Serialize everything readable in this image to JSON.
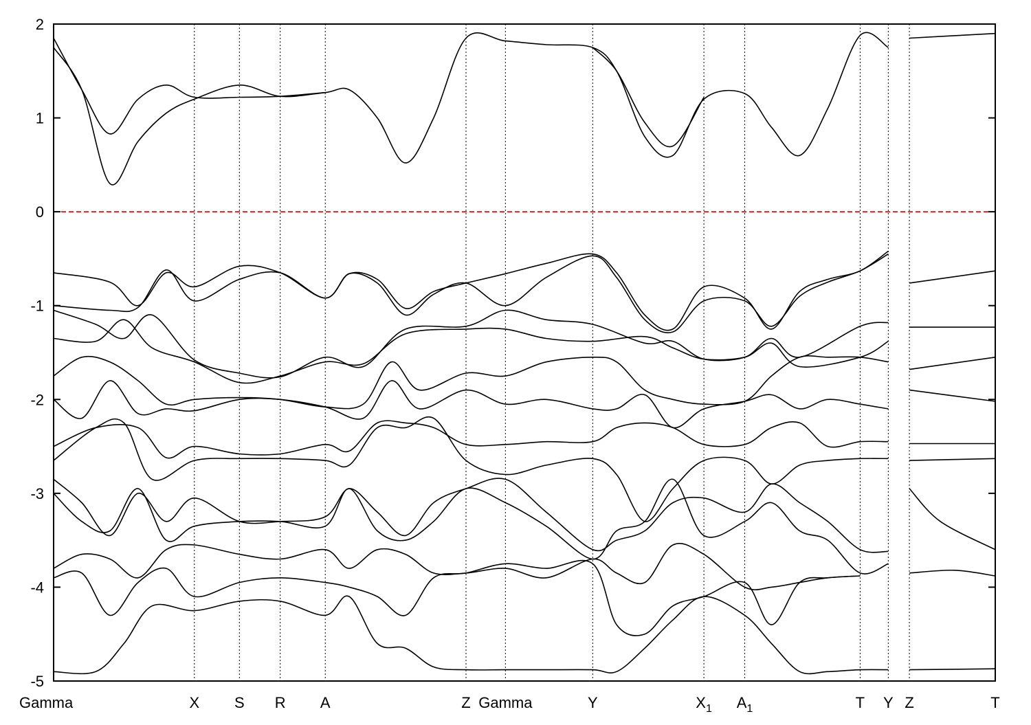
{
  "chart_data": {
    "type": "line",
    "title": "",
    "xlabel": "",
    "ylabel": "",
    "ylim": [
      -5,
      2
    ],
    "y_ticks": [
      "2",
      "1",
      "0",
      "-1",
      "-2",
      "-3",
      "-4",
      "-5"
    ],
    "grid": "vertical dotted lines at high-symmetry points",
    "legend": "none",
    "colors": {
      "band": "#000000",
      "fermi_level": "#dd0000",
      "axis": "#000000"
    },
    "x_ticks": [
      {
        "label": "Gamma",
        "sub": "",
        "pos": 0.0
      },
      {
        "label": "X",
        "sub": "",
        "pos": 1.0
      },
      {
        "label": "S",
        "sub": "",
        "pos": 1.32
      },
      {
        "label": "R",
        "sub": "",
        "pos": 1.61
      },
      {
        "label": "A",
        "sub": "",
        "pos": 1.93
      },
      {
        "label": "Z",
        "sub": "",
        "pos": 2.93
      },
      {
        "label": "Gamma",
        "sub": "",
        "pos": 3.21
      },
      {
        "label": "Y",
        "sub": "",
        "pos": 3.83
      },
      {
        "label": "X",
        "sub": "1",
        "pos": 4.62
      },
      {
        "label": "A",
        "sub": "1",
        "pos": 4.91
      },
      {
        "label": "T",
        "sub": "",
        "pos": 5.73
      },
      {
        "label": "Y",
        "sub": "",
        "pos": 5.93
      },
      {
        "label": "Z",
        "sub": "",
        "pos": 6.08
      },
      {
        "label": "T",
        "sub": "",
        "pos": 6.69
      }
    ],
    "xlim": [
      0,
      6.69
    ],
    "fermi_level": 0,
    "series": [
      {
        "x": [
          0,
          0.2,
          0.4,
          0.6,
          0.8,
          1.0,
          1.32,
          1.61,
          1.93,
          2.1,
          2.3,
          2.5,
          2.7,
          2.93,
          3.21,
          3.5,
          3.83,
          4.0,
          4.2,
          4.4,
          4.62,
          4.91,
          5.1,
          5.3,
          5.5,
          5.73,
          5.93
        ],
        "y": [
          1.75,
          1.3,
          0.3,
          0.75,
          1.05,
          1.2,
          1.35,
          1.23,
          1.27,
          1.3,
          1.0,
          0.52,
          1.0,
          1.85,
          1.82,
          1.78,
          1.75,
          1.5,
          0.8,
          0.6,
          1.2,
          1.26,
          0.9,
          0.6,
          1.1,
          1.88,
          1.75
        ]
      },
      {
        "x": [
          0,
          0.2,
          0.4,
          0.6,
          0.8,
          1.0,
          1.32,
          1.61,
          1.93
        ],
        "y": [
          1.85,
          1.3,
          0.83,
          1.2,
          1.35,
          1.22,
          1.22,
          1.23,
          1.27
        ]
      },
      {
        "x": [
          3.83,
          4.0,
          4.2,
          4.4,
          4.62
        ],
        "y": [
          1.75,
          1.5,
          0.95,
          0.7,
          1.22
        ]
      },
      {
        "x": [
          6.08,
          6.69
        ],
        "y": [
          1.85,
          1.9
        ]
      },
      {
        "x": [
          0,
          0.4,
          0.6,
          0.8,
          1.0,
          1.32,
          1.61,
          1.93,
          2.1,
          2.3,
          2.5,
          2.7,
          2.93,
          3.21,
          3.5,
          3.83,
          4.0,
          4.2,
          4.4,
          4.62,
          4.91,
          5.1,
          5.3,
          5.5,
          5.73,
          5.93
        ],
        "y": [
          -0.65,
          -0.75,
          -1.0,
          -0.65,
          -0.8,
          -0.58,
          -0.65,
          -0.92,
          -0.66,
          -0.72,
          -1.03,
          -0.85,
          -0.76,
          -0.66,
          -0.55,
          -0.45,
          -0.65,
          -1.1,
          -1.25,
          -0.8,
          -0.92,
          -1.25,
          -0.85,
          -0.72,
          -0.63,
          -0.42
        ]
      },
      {
        "x": [
          0,
          0.4,
          0.6,
          0.8,
          1.0,
          1.32,
          1.61,
          1.93,
          2.1,
          2.3,
          2.5,
          2.7,
          2.93,
          3.21,
          3.5,
          3.83,
          4.0,
          4.2,
          4.4,
          4.62,
          4.91,
          5.1,
          5.3,
          5.5,
          5.73,
          5.93
        ],
        "y": [
          -1.0,
          -1.05,
          -1.02,
          -0.62,
          -0.95,
          -0.72,
          -0.65,
          -0.92,
          -0.66,
          -0.76,
          -1.1,
          -0.88,
          -0.76,
          -1.0,
          -0.7,
          -0.47,
          -0.7,
          -1.15,
          -1.28,
          -0.95,
          -0.95,
          -1.22,
          -0.9,
          -0.75,
          -0.63,
          -0.45
        ]
      },
      {
        "x": [
          6.08,
          6.69
        ],
        "y": [
          -0.76,
          -0.63
        ]
      },
      {
        "x": [
          0,
          0.3,
          0.5,
          0.7,
          1.0,
          1.32,
          1.61,
          1.93,
          2.2,
          2.5,
          2.93,
          3.21,
          3.5,
          3.83,
          4.2,
          4.4,
          4.62,
          4.91,
          5.1,
          5.3,
          5.73,
          5.93
        ],
        "y": [
          -1.05,
          -1.2,
          -1.35,
          -1.1,
          -1.58,
          -1.72,
          -1.76,
          -1.55,
          -1.65,
          -1.25,
          -1.22,
          -1.05,
          -1.15,
          -1.2,
          -1.4,
          -1.38,
          -1.57,
          -1.55,
          -1.35,
          -1.55,
          -1.22,
          -1.18
        ]
      },
      {
        "x": [
          0,
          0.3,
          0.5,
          0.7,
          1.0,
          1.32,
          1.61,
          1.93,
          2.2,
          2.5,
          2.93,
          3.21,
          3.5,
          3.83,
          4.2,
          4.4,
          4.62,
          4.91,
          5.1,
          5.3,
          5.73,
          5.93
        ],
        "y": [
          -1.35,
          -1.38,
          -1.15,
          -1.45,
          -1.6,
          -1.82,
          -1.75,
          -1.6,
          -1.62,
          -1.3,
          -1.25,
          -1.25,
          -1.35,
          -1.38,
          -1.33,
          -1.45,
          -1.57,
          -1.55,
          -1.4,
          -1.65,
          -1.55,
          -1.38
        ]
      },
      {
        "x": [
          6.08,
          6.69
        ],
        "y": [
          -1.23,
          -1.23
        ]
      },
      {
        "x": [
          6.08,
          6.69
        ],
        "y": [
          -1.68,
          -1.55
        ]
      },
      {
        "x": [
          0,
          0.2,
          0.4,
          0.6,
          0.8,
          1.0,
          1.32,
          1.61,
          1.93,
          2.2,
          2.4,
          2.6,
          2.93,
          3.21,
          3.5,
          3.83,
          4.0,
          4.2,
          4.4,
          4.62,
          4.91,
          5.1,
          5.3,
          5.5,
          5.73,
          5.93
        ],
        "y": [
          -1.75,
          -1.55,
          -1.6,
          -1.8,
          -2.05,
          -2.0,
          -1.98,
          -2.0,
          -2.08,
          -2.05,
          -1.6,
          -1.9,
          -1.72,
          -1.75,
          -1.6,
          -1.55,
          -1.6,
          -1.9,
          -2.0,
          -2.05,
          -2.02,
          -1.75,
          -1.55,
          -1.55,
          -1.55,
          -1.6
        ]
      },
      {
        "x": [
          0,
          0.2,
          0.4,
          0.6,
          0.8,
          1.0,
          1.32,
          1.61,
          1.93,
          2.2,
          2.4,
          2.6,
          2.93,
          3.21,
          3.5,
          3.83,
          4.0,
          4.2,
          4.4,
          4.62,
          4.91,
          5.1,
          5.3,
          5.5,
          5.73,
          5.93
        ],
        "y": [
          -2.0,
          -2.2,
          -1.8,
          -2.15,
          -2.1,
          -2.12,
          -2.0,
          -2.0,
          -2.08,
          -2.2,
          -1.8,
          -2.1,
          -1.9,
          -2.05,
          -2.0,
          -2.1,
          -2.1,
          -1.95,
          -2.3,
          -2.1,
          -2.02,
          -1.95,
          -2.1,
          -2.0,
          -2.05,
          -2.1
        ]
      },
      {
        "x": [
          6.08,
          6.69
        ],
        "y": [
          -1.9,
          -2.02
        ]
      },
      {
        "x": [
          0,
          0.3,
          0.6,
          0.8,
          1.0,
          1.32,
          1.61,
          1.93,
          2.1,
          2.3,
          2.5,
          2.7,
          2.93,
          3.21,
          3.5,
          3.83,
          4.0,
          4.2,
          4.4,
          4.62,
          4.91,
          5.1,
          5.3,
          5.5,
          5.73,
          5.93
        ],
        "y": [
          -2.5,
          -2.3,
          -2.3,
          -2.62,
          -2.5,
          -2.58,
          -2.58,
          -2.48,
          -2.55,
          -2.25,
          -2.25,
          -2.3,
          -2.48,
          -2.48,
          -2.45,
          -2.45,
          -2.3,
          -2.25,
          -2.3,
          -2.48,
          -2.48,
          -2.3,
          -2.25,
          -2.5,
          -2.45,
          -2.45
        ]
      },
      {
        "x": [
          6.08,
          6.69
        ],
        "y": [
          -2.47,
          -2.47
        ]
      },
      {
        "x": [
          0,
          0.3,
          0.5,
          0.7,
          1.0,
          1.32,
          1.61,
          1.93,
          2.1,
          2.3,
          2.5,
          2.7,
          2.93,
          3.21,
          3.5,
          3.83,
          4.0,
          4.2,
          4.4,
          4.62,
          4.91,
          5.1,
          5.3,
          5.5,
          5.73,
          5.93
        ],
        "y": [
          -2.65,
          -2.3,
          -2.25,
          -2.85,
          -2.65,
          -2.63,
          -2.63,
          -2.65,
          -2.7,
          -2.3,
          -2.3,
          -2.2,
          -2.65,
          -2.8,
          -2.7,
          -2.63,
          -2.8,
          -3.3,
          -2.95,
          -2.65,
          -2.65,
          -2.9,
          -2.7,
          -2.65,
          -2.63,
          -2.63
        ]
      },
      {
        "x": [
          6.08,
          6.69
        ],
        "y": [
          -2.65,
          -2.63
        ]
      },
      {
        "x": [
          0,
          0.2,
          0.4,
          0.6,
          0.8,
          1.0,
          1.32,
          1.61,
          1.93,
          2.1,
          2.3,
          2.5,
          2.7,
          2.93,
          3.21,
          3.5,
          3.83,
          4.0,
          4.2,
          4.4,
          4.62,
          4.91,
          5.1,
          5.3,
          5.5,
          5.73,
          5.93
        ],
        "y": [
          -2.85,
          -3.1,
          -3.45,
          -3.0,
          -3.3,
          -3.05,
          -3.3,
          -3.3,
          -3.25,
          -2.95,
          -3.2,
          -3.45,
          -3.1,
          -2.95,
          -2.85,
          -3.2,
          -3.6,
          -3.5,
          -3.4,
          -3.1,
          -3.05,
          -3.2,
          -2.9,
          -3.1,
          -3.3,
          -3.6,
          -3.62
        ]
      },
      {
        "x": [
          6.08,
          6.3,
          6.69
        ],
        "y": [
          -2.95,
          -3.3,
          -3.6
        ]
      },
      {
        "x": [
          0,
          0.2,
          0.4,
          0.6,
          0.8,
          1.0,
          1.32,
          1.61,
          1.93,
          2.1,
          2.3,
          2.5,
          2.7,
          2.93,
          3.21,
          3.5,
          3.83,
          4.0,
          4.2,
          4.4,
          4.62,
          4.91,
          5.1,
          5.3,
          5.5,
          5.73,
          5.93
        ],
        "y": [
          -3.0,
          -3.3,
          -3.4,
          -2.95,
          -3.5,
          -3.35,
          -3.3,
          -3.3,
          -3.35,
          -2.95,
          -3.4,
          -3.5,
          -3.3,
          -2.95,
          -3.1,
          -3.35,
          -3.7,
          -3.4,
          -3.3,
          -2.85,
          -3.45,
          -3.3,
          -3.1,
          -3.4,
          -3.5,
          -3.85,
          -3.75
        ]
      },
      {
        "x": [
          6.08,
          6.4,
          6.69
        ],
        "y": [
          -3.85,
          -3.82,
          -3.88
        ]
      },
      {
        "x": [
          0,
          0.2,
          0.4,
          0.6,
          0.8,
          1.0,
          1.32,
          1.61,
          1.93,
          2.1,
          2.3,
          2.5,
          2.7,
          2.93,
          3.21,
          3.5,
          3.83,
          4.0,
          4.2,
          4.4,
          4.62,
          4.91,
          5.1,
          5.3,
          5.5,
          5.73
        ],
        "y": [
          -3.8,
          -3.65,
          -3.7,
          -3.9,
          -3.6,
          -3.55,
          -3.65,
          -3.7,
          -3.6,
          -3.8,
          -3.6,
          -3.65,
          -3.85,
          -3.85,
          -3.8,
          -3.9,
          -3.7,
          -3.85,
          -3.95,
          -3.55,
          -3.65,
          -4.0,
          -4.0,
          -3.95,
          -3.9,
          -3.88
        ]
      },
      {
        "x": [
          0,
          0.2,
          0.4,
          0.6,
          0.8,
          1.0,
          1.32,
          1.61,
          1.93,
          2.1,
          2.3,
          2.5,
          2.7,
          2.93,
          3.21,
          3.5,
          3.83,
          4.0,
          4.2,
          4.4,
          4.62,
          4.91,
          5.1,
          5.3,
          5.5,
          5.73
        ],
        "y": [
          -3.9,
          -3.85,
          -4.3,
          -3.95,
          -3.8,
          -4.1,
          -3.95,
          -3.9,
          -3.95,
          -4.0,
          -4.1,
          -4.3,
          -3.9,
          -3.85,
          -3.75,
          -3.8,
          -3.75,
          -4.4,
          -4.5,
          -4.2,
          -4.1,
          -3.95,
          -4.4,
          -3.95,
          -3.9,
          -3.88
        ]
      },
      {
        "x": [
          0,
          0.3,
          0.5,
          0.7,
          1.0,
          1.32,
          1.61,
          1.93,
          2.1,
          2.3,
          2.5,
          2.7,
          2.93,
          3.21,
          3.5,
          3.83,
          4.0,
          4.2,
          4.4,
          4.62,
          4.91,
          5.1,
          5.3,
          5.5,
          5.73,
          5.93
        ],
        "y": [
          -4.9,
          -4.9,
          -4.6,
          -4.2,
          -4.25,
          -4.15,
          -4.15,
          -4.3,
          -4.1,
          -4.6,
          -4.65,
          -4.85,
          -4.88,
          -4.88,
          -4.88,
          -4.88,
          -4.9,
          -4.65,
          -4.35,
          -4.1,
          -4.3,
          -4.6,
          -4.9,
          -4.9,
          -4.88,
          -4.88
        ]
      },
      {
        "x": [
          6.08,
          6.69
        ],
        "y": [
          -4.88,
          -4.87
        ]
      }
    ]
  }
}
